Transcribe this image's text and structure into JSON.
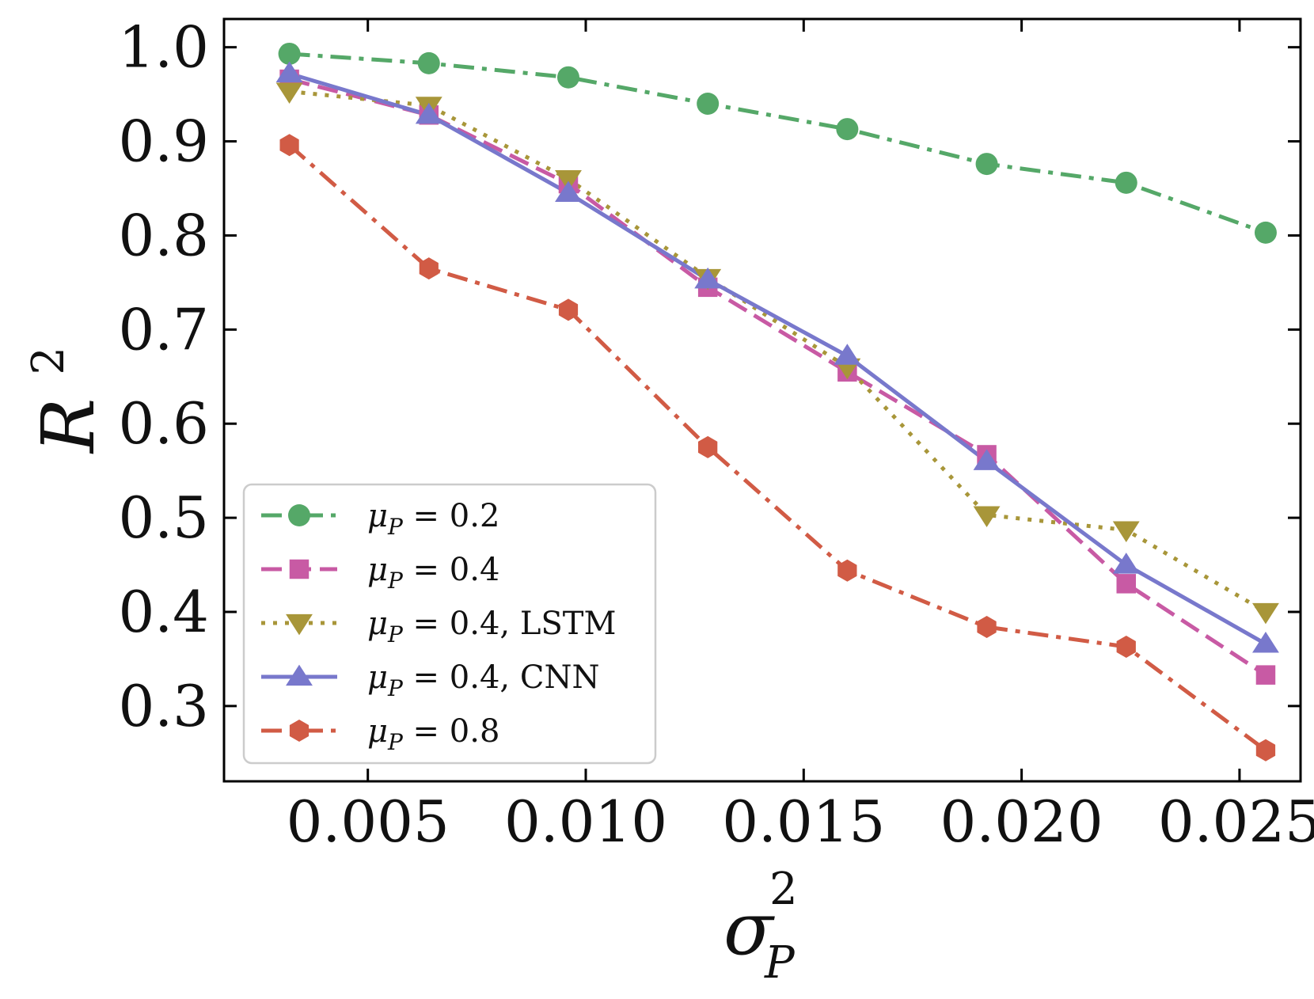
{
  "chart_data": {
    "type": "line",
    "title": "",
    "xlabel": "σ",
    "xlabel_sup": "2",
    "xlabel_sub": "P",
    "ylabel": "R",
    "ylabel_sup": "2",
    "xlim": [
      0.0017,
      0.0264
    ],
    "ylim": [
      0.22,
      1.03
    ],
    "xticks": [
      0.005,
      0.01,
      0.015,
      0.02,
      0.025
    ],
    "xtick_labels": [
      "0.005",
      "0.010",
      "0.015",
      "0.020",
      "0.025"
    ],
    "yticks": [
      0.3,
      0.4,
      0.5,
      0.6,
      0.7,
      0.8,
      0.9,
      1.0
    ],
    "ytick_labels": [
      "0.3",
      "0.4",
      "0.5",
      "0.6",
      "0.7",
      "0.8",
      "0.9",
      "1.0"
    ],
    "x": [
      0.0032,
      0.0064,
      0.0096,
      0.0128,
      0.016,
      0.0192,
      0.0224,
      0.0256
    ],
    "legend_position": "lower-left",
    "series": [
      {
        "name": "μP = 0.2",
        "label_greek": "μ",
        "label_sub": "P",
        "label_rest": " = 0.2",
        "color": "#55a868",
        "dash": "dashdot",
        "marker": "circle",
        "values": [
          0.993,
          0.983,
          0.968,
          0.94,
          0.913,
          0.876,
          0.856,
          0.803
        ]
      },
      {
        "name": "μP = 0.4",
        "label_greek": "μ",
        "label_sub": "P",
        "label_rest": " = 0.4",
        "color": "#c85aa4",
        "dash": "dashed",
        "marker": "square",
        "values": [
          0.966,
          0.928,
          0.855,
          0.745,
          0.655,
          0.567,
          0.43,
          0.333
        ]
      },
      {
        "name": "μP = 0.4, LSTM",
        "label_greek": "μ",
        "label_sub": "P",
        "label_rest": " = 0.4, LSTM",
        "color": "#a89639",
        "dash": "dotted",
        "marker": "triangle-down",
        "values": [
          0.953,
          0.938,
          0.86,
          0.755,
          0.66,
          0.503,
          0.487,
          0.4
        ]
      },
      {
        "name": "μP = 0.4, CNN",
        "label_greek": "μ",
        "label_sub": "P",
        "label_rest": " = 0.4, CNN",
        "color": "#7878cc",
        "dash": "solid",
        "marker": "triangle-up",
        "values": [
          0.972,
          0.928,
          0.845,
          0.753,
          0.672,
          0.56,
          0.45,
          0.366
        ]
      },
      {
        "name": "μP = 0.8",
        "label_greek": "μ",
        "label_sub": "P",
        "label_rest": " = 0.8",
        "color": "#d15b45",
        "dash": "dashdot",
        "marker": "hexagon",
        "values": [
          0.896,
          0.765,
          0.721,
          0.575,
          0.444,
          0.384,
          0.363,
          0.253
        ]
      }
    ]
  }
}
